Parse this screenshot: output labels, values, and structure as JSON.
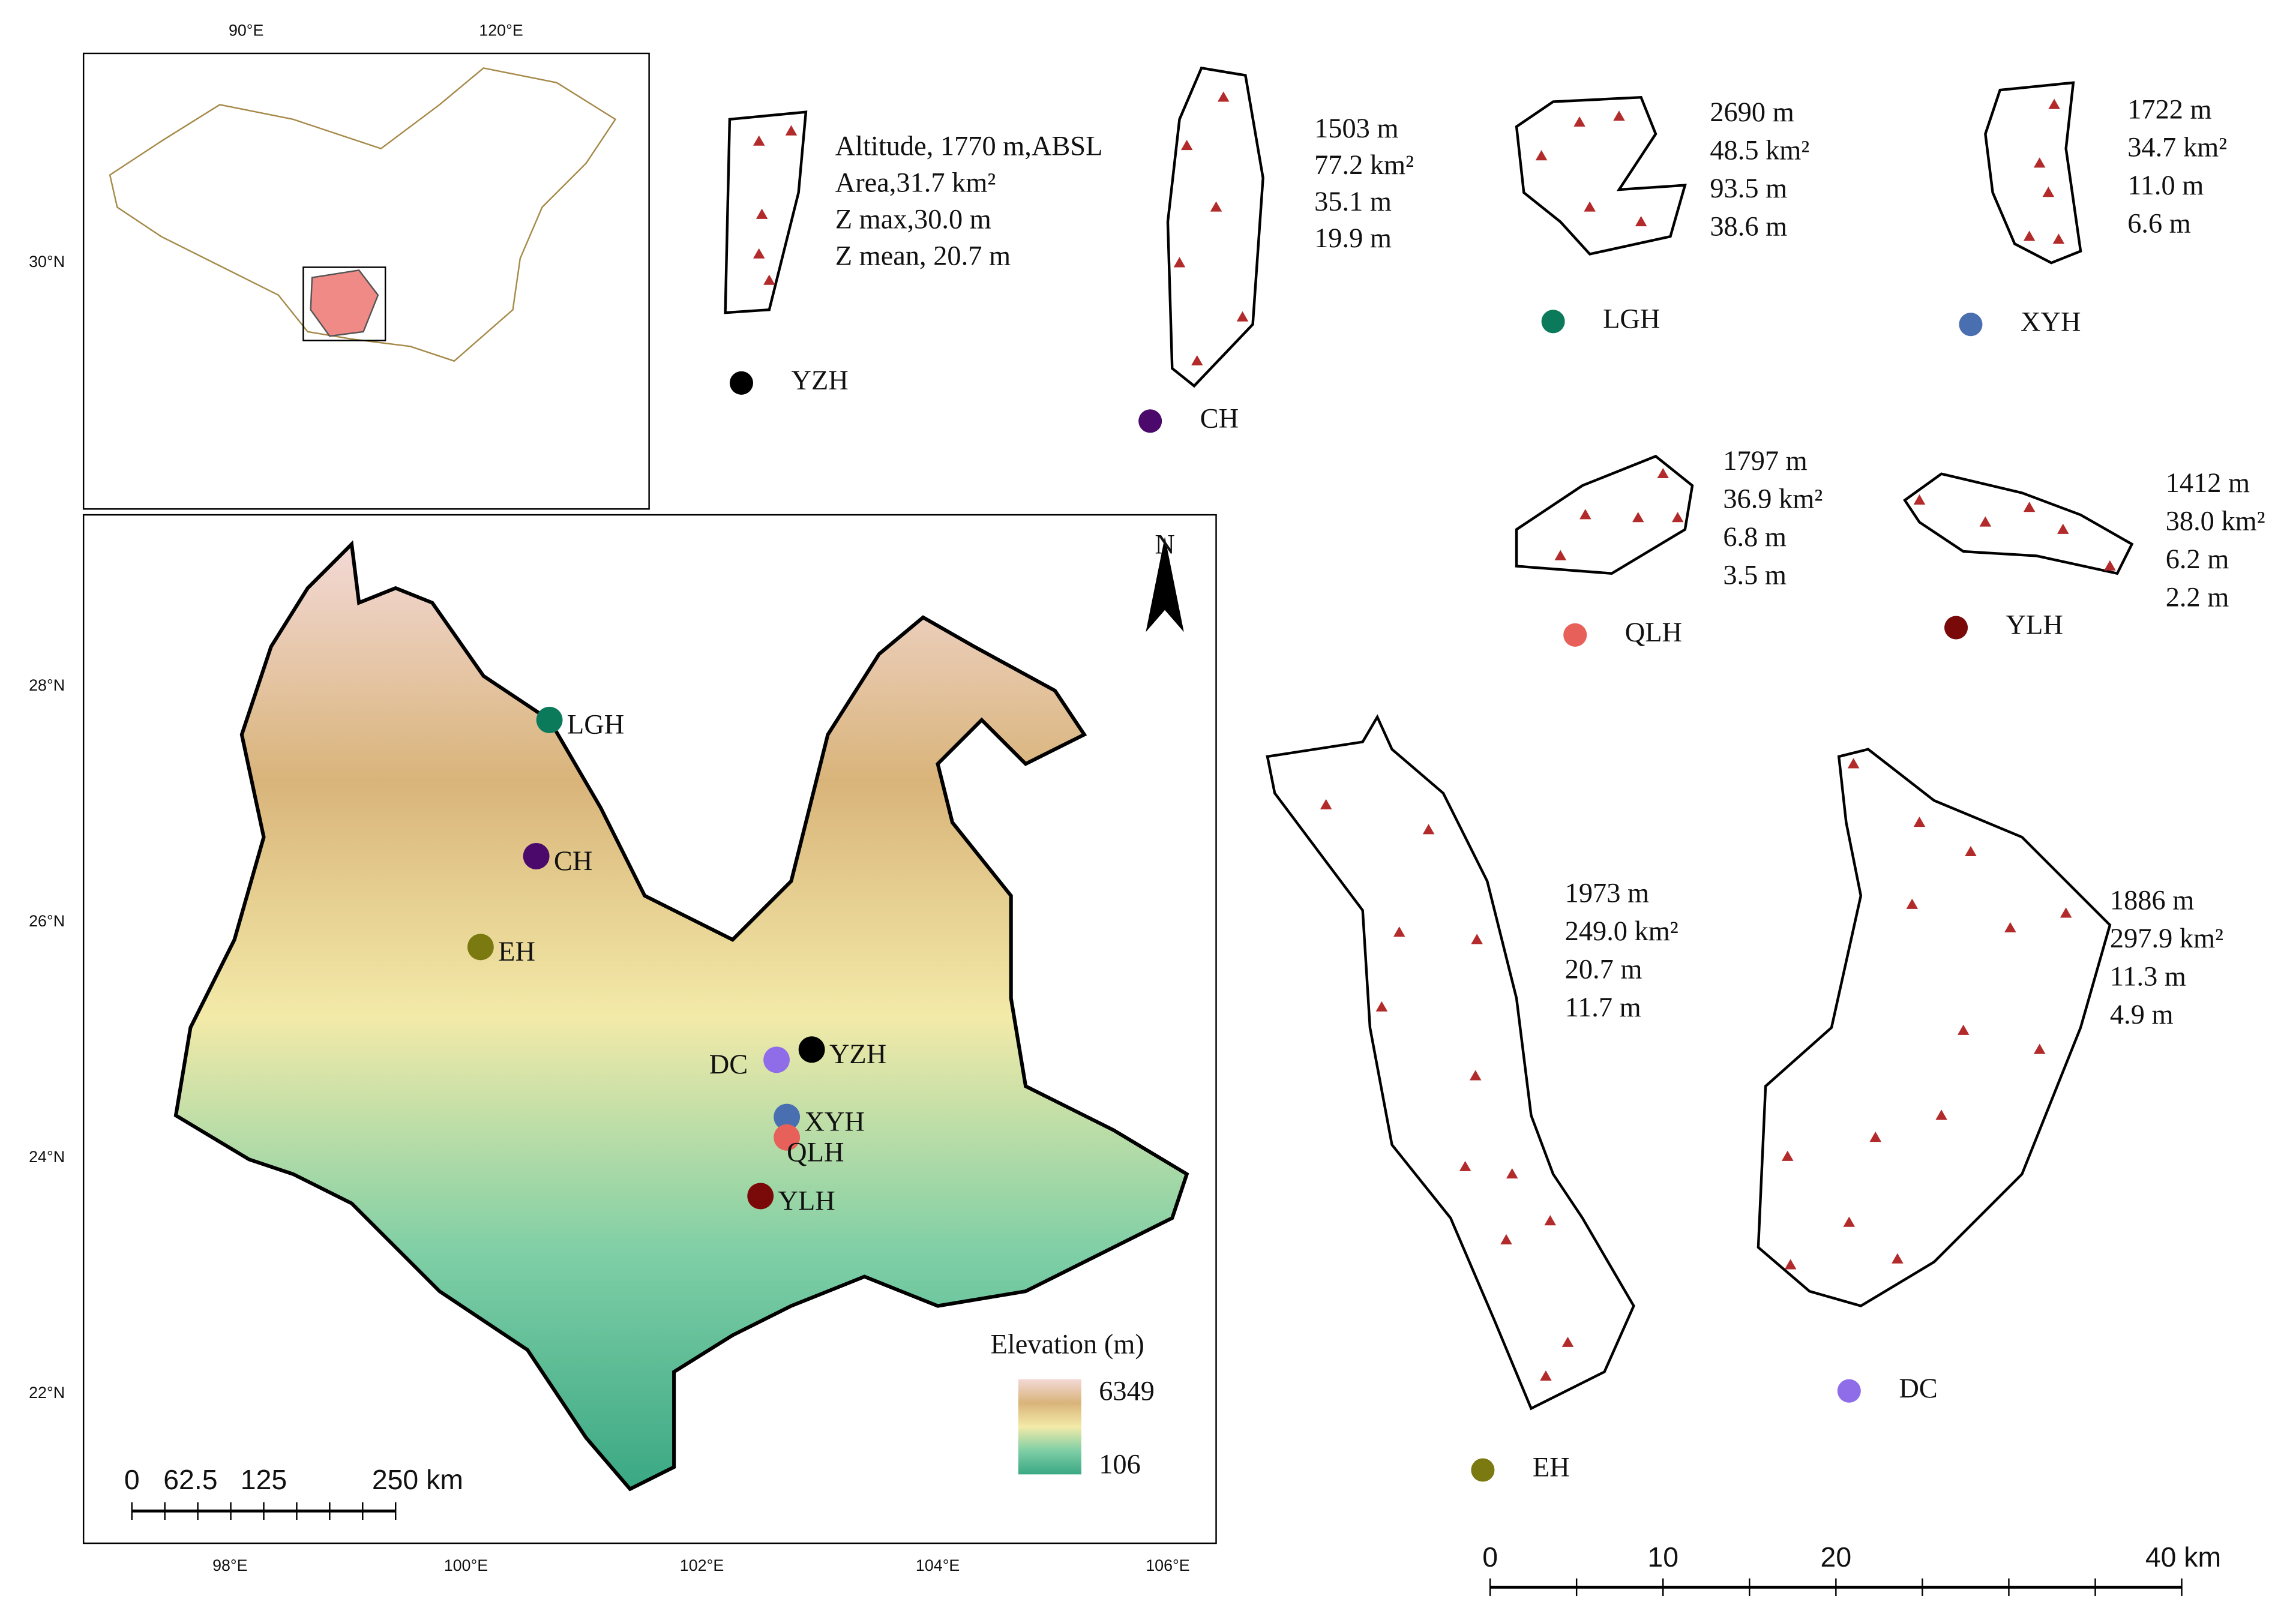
{
  "inset": {
    "x_labels": [
      "90°E",
      "120°E"
    ],
    "y_labels": [
      "30°N"
    ]
  },
  "main_map": {
    "x_labels": [
      "98°E",
      "100°E",
      "102°E",
      "104°E",
      "106°E"
    ],
    "y_labels": [
      "28°N",
      "26°N",
      "24°N",
      "22°N"
    ],
    "north": "N",
    "legend_title": "Elevation (m)",
    "legend_max": "6349",
    "legend_min": "106",
    "scale_labels": [
      "0",
      "62.5",
      "125",
      "250 km"
    ],
    "sites": [
      {
        "label": "LGH",
        "color": "#0b7a5a"
      },
      {
        "label": "CH",
        "color": "#4b0a6b"
      },
      {
        "label": "EH",
        "color": "#7a7a10"
      },
      {
        "label": "YZH",
        "color": "#000000"
      },
      {
        "label": "DC",
        "color": "#8f6de8"
      },
      {
        "label": "XYH",
        "color": "#4a6fb0"
      },
      {
        "label": "QLH",
        "color": "#e8605a"
      },
      {
        "label": "YLH",
        "color": "#7a0a0a"
      }
    ]
  },
  "lakes": [
    {
      "name": "YZH",
      "color": "#000000",
      "stats": [
        "Altitude, 1770 m,ABSL",
        "Area,31.7 km²",
        "Z max,30.0 m",
        "Z mean, 20.7 m"
      ]
    },
    {
      "name": "CH",
      "color": "#4b0a6b",
      "stats": [
        "1503 m",
        "77.2 km²",
        "35.1 m",
        "19.9 m"
      ]
    },
    {
      "name": "LGH",
      "color": "#0b7a5a",
      "stats": [
        "2690 m",
        "48.5 km²",
        "93.5 m",
        "38.6 m"
      ]
    },
    {
      "name": "XYH",
      "color": "#4a6fb0",
      "stats": [
        "1722 m",
        "34.7 km²",
        "11.0 m",
        "6.6 m"
      ]
    },
    {
      "name": "QLH",
      "color": "#e8605a",
      "stats": [
        "1797 m",
        "36.9 km²",
        "6.8 m",
        "3.5 m"
      ]
    },
    {
      "name": "YLH",
      "color": "#7a0a0a",
      "stats": [
        "1412 m",
        "38.0 km²",
        "6.2 m",
        "2.2 m"
      ]
    },
    {
      "name": "EH",
      "color": "#7a7a10",
      "stats": [
        "1973 m",
        "249.0 km²",
        "20.7 m",
        "11.7 m"
      ]
    },
    {
      "name": "DC",
      "color": "#8f6de8",
      "stats": [
        "1886 m",
        "297.9 km²",
        "11.3 m",
        "4.9 m"
      ]
    }
  ],
  "lake_scale": [
    "0",
    "10",
    "20",
    "40 km"
  ]
}
